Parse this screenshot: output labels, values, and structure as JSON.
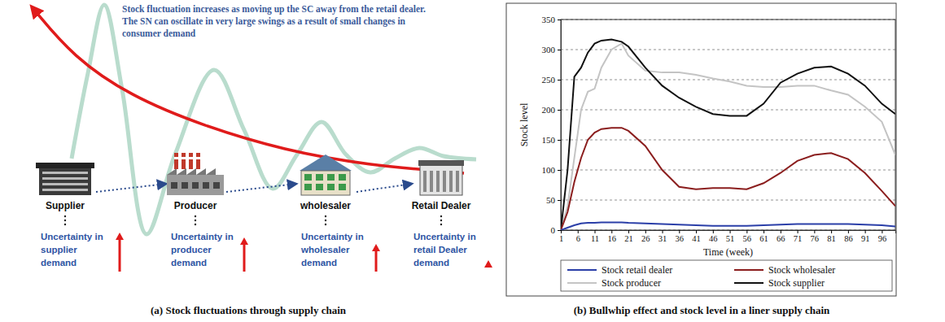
{
  "diagram": {
    "annotation": [
      "Stock fluctuation increases as moving up the SC away from the retail dealer.",
      "The SN can oscillate in very large swings as a result of small changes in",
      "consumer demand"
    ],
    "nodes": [
      {
        "label": "Supplier",
        "uncertainty": [
          "Uncertainty in",
          "supplier",
          "demand"
        ]
      },
      {
        "label": "Producer",
        "uncertainty": [
          "Uncertainty in",
          "producer",
          "demand"
        ]
      },
      {
        "label": "wholesaler",
        "uncertainty": [
          "Uncertainty in",
          "wholesaler",
          "demand"
        ]
      },
      {
        "label": "Retail Dealer",
        "uncertainty": [
          "Uncertainty in",
          "retail Dealer",
          "demand"
        ]
      }
    ],
    "caption": "(a) Stock fluctuations through supply chain"
  },
  "chart_data": {
    "type": "line",
    "title": "(b) Bullwhip effect and stock level in a liner supply chain",
    "x_label": "Time (week)",
    "y_label": "Stock level",
    "x": [
      1,
      3,
      5,
      7,
      9,
      11,
      13,
      16,
      19,
      21,
      26,
      31,
      36,
      41,
      46,
      51,
      56,
      61,
      66,
      71,
      76,
      81,
      86,
      91,
      96,
      100
    ],
    "xlim": [
      1,
      100
    ],
    "xticks": [
      1,
      6,
      11,
      16,
      21,
      26,
      31,
      36,
      41,
      46,
      51,
      56,
      61,
      66,
      71,
      76,
      81,
      86,
      91,
      96
    ],
    "ylim": [
      0,
      350
    ],
    "yticks": [
      0,
      50,
      100,
      150,
      200,
      250,
      300,
      350
    ],
    "grid": true,
    "legend": "bottom",
    "series": [
      {
        "name": "Stock retail dealer",
        "color": "#2b3fa8",
        "values": [
          0,
          4,
          8,
          11,
          12,
          12,
          13,
          13,
          13,
          12,
          11,
          10,
          9,
          8,
          7,
          7,
          7,
          8,
          9,
          10,
          10,
          10,
          10,
          9,
          8,
          6
        ]
      },
      {
        "name": "Stock wholesaler",
        "color": "#8b1e1e",
        "values": [
          0,
          30,
          80,
          120,
          150,
          162,
          168,
          170,
          170,
          165,
          140,
          100,
          72,
          68,
          70,
          70,
          68,
          78,
          95,
          115,
          125,
          128,
          118,
          95,
          65,
          40
        ]
      },
      {
        "name": "Stock producer",
        "color": "#c4c4c4",
        "values": [
          0,
          40,
          120,
          200,
          230,
          235,
          270,
          300,
          310,
          290,
          265,
          262,
          262,
          258,
          252,
          247,
          240,
          238,
          238,
          240,
          240,
          232,
          225,
          205,
          180,
          125
        ]
      },
      {
        "name": "Stock supplier",
        "color": "#111111",
        "values": [
          0,
          100,
          255,
          270,
          295,
          310,
          315,
          317,
          313,
          305,
          270,
          240,
          220,
          205,
          193,
          190,
          190,
          210,
          245,
          260,
          270,
          272,
          260,
          240,
          210,
          193
        ]
      }
    ]
  }
}
